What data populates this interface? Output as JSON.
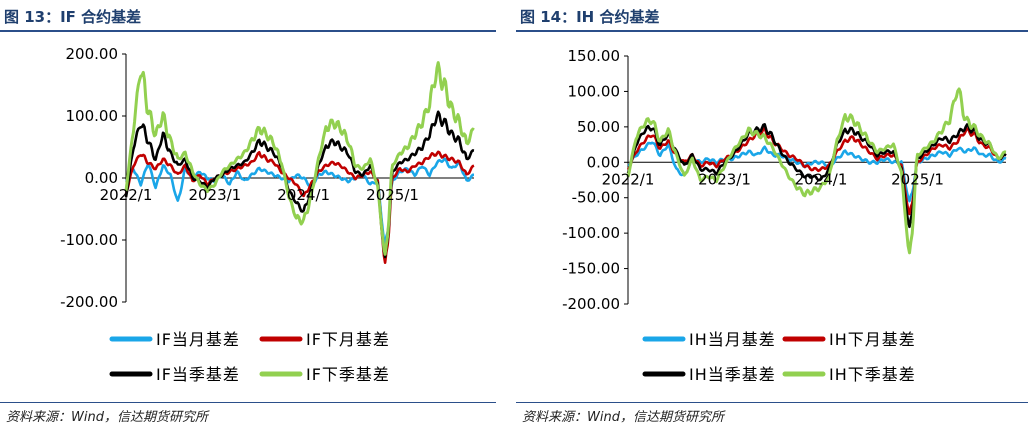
{
  "figures": [
    {
      "title": "图 13：IF 合约基差",
      "source": "资料来源：Wind，信达期货研究所"
    },
    {
      "title": "图 14：IH 合约基差",
      "source": "资料来源：Wind，信达期货研究所"
    }
  ],
  "colors": {
    "title": "#1f3f6e",
    "rule": "#2b4f8a",
    "current_month": "#1aa6e8",
    "next_month": "#c00000",
    "current_quarter": "#000000",
    "next_quarter": "#92d050"
  },
  "chart_data": [
    {
      "type": "line",
      "title": "",
      "x_tick_labels": [
        "2022/1",
        "2023/1",
        "2024/1",
        "2025/1"
      ],
      "x_range": [
        "2022/1",
        "2025/12"
      ],
      "ylim": [
        -200,
        200
      ],
      "y_ticks": [
        200,
        100,
        0,
        -100,
        -200
      ],
      "y_tick_labels": [
        "200.00",
        "100.00",
        "0.00",
        "-100.00",
        "-200.00"
      ],
      "grid": false,
      "legend": "bottom",
      "series": [
        {
          "name": "IF当月基差",
          "color": "#1aa6e8",
          "x": [
            "2022/1",
            "2022/2",
            "2022/3",
            "2022/4",
            "2022/5",
            "2022/6",
            "2022/7",
            "2022/8",
            "2022/9",
            "2022/10",
            "2022/11",
            "2022/12",
            "2023/1",
            "2023/2",
            "2023/3",
            "2023/4",
            "2023/5",
            "2023/6",
            "2023/7",
            "2023/8",
            "2023/9",
            "2023/10",
            "2023/11",
            "2023/12",
            "2024/1",
            "2024/2",
            "2024/3",
            "2024/4",
            "2024/5",
            "2024/6",
            "2024/7",
            "2024/8",
            "2024/9",
            "2024/10",
            "2024/11",
            "2024/12",
            "2025/1",
            "2025/2",
            "2025/3",
            "2025/4",
            "2025/5",
            "2025/6",
            "2025/7",
            "2025/8",
            "2025/9",
            "2025/10",
            "2025/11",
            "2025/12"
          ],
          "y": [
            -5,
            15,
            -10,
            25,
            -15,
            20,
            5,
            -40,
            15,
            0,
            10,
            0,
            -5,
            5,
            -10,
            10,
            -5,
            5,
            15,
            10,
            5,
            0,
            -5,
            5,
            0,
            -15,
            5,
            10,
            5,
            0,
            -5,
            0,
            5,
            -10,
            -5,
            -120,
            -5,
            10,
            15,
            5,
            20,
            5,
            25,
            30,
            15,
            25,
            -5,
            5
          ]
        },
        {
          "name": "IF下月基差",
          "color": "#c00000",
          "x": [
            "2022/1",
            "2022/2",
            "2022/3",
            "2022/4",
            "2022/5",
            "2022/6",
            "2022/7",
            "2022/8",
            "2022/9",
            "2022/10",
            "2022/11",
            "2022/12",
            "2023/1",
            "2023/2",
            "2023/3",
            "2023/4",
            "2023/5",
            "2023/6",
            "2023/7",
            "2023/8",
            "2023/9",
            "2023/10",
            "2023/11",
            "2023/12",
            "2024/1",
            "2024/2",
            "2024/3",
            "2024/4",
            "2024/5",
            "2024/6",
            "2024/7",
            "2024/8",
            "2024/9",
            "2024/10",
            "2024/11",
            "2024/12",
            "2025/1",
            "2025/2",
            "2025/3",
            "2025/4",
            "2025/5",
            "2025/6",
            "2025/7",
            "2025/8",
            "2025/9",
            "2025/10",
            "2025/11",
            "2025/12"
          ],
          "y": [
            -25,
            20,
            40,
            25,
            15,
            30,
            20,
            5,
            20,
            -5,
            5,
            -10,
            0,
            5,
            10,
            15,
            20,
            25,
            40,
            30,
            25,
            10,
            0,
            -10,
            -30,
            -10,
            10,
            20,
            25,
            20,
            10,
            0,
            5,
            10,
            -5,
            -150,
            0,
            15,
            10,
            20,
            25,
            35,
            40,
            35,
            30,
            25,
            5,
            20
          ]
        },
        {
          "name": "IF当季基差",
          "color": "#000000",
          "x": [
            "2022/1",
            "2022/2",
            "2022/3",
            "2022/4",
            "2022/5",
            "2022/6",
            "2022/7",
            "2022/8",
            "2022/9",
            "2022/10",
            "2022/11",
            "2022/12",
            "2023/1",
            "2023/2",
            "2023/3",
            "2023/4",
            "2023/5",
            "2023/6",
            "2023/7",
            "2023/8",
            "2023/9",
            "2023/10",
            "2023/11",
            "2023/12",
            "2024/1",
            "2024/2",
            "2024/3",
            "2024/4",
            "2024/5",
            "2024/6",
            "2024/7",
            "2024/8",
            "2024/9",
            "2024/10",
            "2024/11",
            "2024/12",
            "2025/1",
            "2025/2",
            "2025/3",
            "2025/4",
            "2025/5",
            "2025/6",
            "2025/7",
            "2025/8",
            "2025/9",
            "2025/10",
            "2025/11",
            "2025/12"
          ],
          "y": [
            -30,
            50,
            90,
            60,
            30,
            70,
            40,
            20,
            30,
            0,
            -5,
            -15,
            0,
            5,
            15,
            20,
            25,
            40,
            60,
            50,
            40,
            20,
            -20,
            -40,
            -55,
            -20,
            20,
            50,
            60,
            50,
            40,
            10,
            5,
            20,
            -10,
            -140,
            10,
            25,
            30,
            40,
            50,
            70,
            100,
            90,
            70,
            60,
            30,
            45
          ]
        },
        {
          "name": "IF下季基差",
          "color": "#92d050",
          "x": [
            "2022/1",
            "2022/2",
            "2022/3",
            "2022/4",
            "2022/5",
            "2022/6",
            "2022/7",
            "2022/8",
            "2022/9",
            "2022/10",
            "2022/11",
            "2022/12",
            "2023/1",
            "2023/2",
            "2023/3",
            "2023/4",
            "2023/5",
            "2023/6",
            "2023/7",
            "2023/8",
            "2023/9",
            "2023/10",
            "2023/11",
            "2023/12",
            "2024/1",
            "2024/2",
            "2024/3",
            "2024/4",
            "2024/5",
            "2024/6",
            "2024/7",
            "2024/8",
            "2024/9",
            "2024/10",
            "2024/11",
            "2024/12",
            "2025/1",
            "2025/2",
            "2025/3",
            "2025/4",
            "2025/5",
            "2025/6",
            "2025/7",
            "2025/8",
            "2025/9",
            "2025/10",
            "2025/11",
            "2025/12"
          ],
          "y": [
            -20,
            80,
            180,
            110,
            70,
            100,
            60,
            30,
            40,
            10,
            -10,
            -20,
            -10,
            10,
            20,
            30,
            40,
            60,
            80,
            70,
            55,
            25,
            -30,
            -65,
            -70,
            -30,
            30,
            80,
            90,
            80,
            60,
            20,
            15,
            30,
            -15,
            -135,
            20,
            40,
            50,
            70,
            90,
            120,
            175,
            150,
            110,
            90,
            55,
            80
          ]
        }
      ]
    },
    {
      "type": "line",
      "title": "",
      "x_tick_labels": [
        "2022/1",
        "2023/1",
        "2024/1",
        "2025/1"
      ],
      "x_range": [
        "2022/1",
        "2025/12"
      ],
      "ylim": [
        -200,
        150
      ],
      "y_ticks": [
        150,
        100,
        50,
        0,
        -50,
        -100,
        -150,
        -200
      ],
      "y_tick_labels": [
        "150.00",
        "100.00",
        "50.00",
        "0.00",
        "-50.00",
        "-100.00",
        "-150.00",
        "-200.00"
      ],
      "grid": false,
      "legend": "bottom",
      "series": [
        {
          "name": "IH当月基差",
          "color": "#1aa6e8",
          "x": [
            "2022/1",
            "2022/2",
            "2022/3",
            "2022/4",
            "2022/5",
            "2022/6",
            "2022/7",
            "2022/8",
            "2022/9",
            "2022/10",
            "2022/11",
            "2022/12",
            "2023/1",
            "2023/2",
            "2023/3",
            "2023/4",
            "2023/5",
            "2023/6",
            "2023/7",
            "2023/8",
            "2023/9",
            "2023/10",
            "2023/11",
            "2023/12",
            "2024/1",
            "2024/2",
            "2024/3",
            "2024/4",
            "2024/5",
            "2024/6",
            "2024/7",
            "2024/8",
            "2024/9",
            "2024/10",
            "2024/11",
            "2024/12",
            "2025/1",
            "2025/2",
            "2025/3",
            "2025/4",
            "2025/5",
            "2025/6",
            "2025/7",
            "2025/8",
            "2025/9",
            "2025/10",
            "2025/11",
            "2025/12"
          ],
          "y": [
            -5,
            10,
            20,
            30,
            10,
            25,
            -10,
            -20,
            5,
            0,
            5,
            0,
            5,
            5,
            10,
            15,
            10,
            20,
            10,
            10,
            5,
            0,
            -5,
            0,
            0,
            -5,
            5,
            15,
            10,
            5,
            0,
            0,
            5,
            0,
            0,
            -60,
            0,
            5,
            10,
            15,
            10,
            20,
            15,
            20,
            10,
            10,
            0,
            5
          ]
        },
        {
          "name": "IH下月基差",
          "color": "#c00000",
          "x": [
            "2022/1",
            "2022/2",
            "2022/3",
            "2022/4",
            "2022/5",
            "2022/6",
            "2022/7",
            "2022/8",
            "2022/9",
            "2022/10",
            "2022/11",
            "2022/12",
            "2023/1",
            "2023/2",
            "2023/3",
            "2023/4",
            "2023/5",
            "2023/6",
            "2023/7",
            "2023/8",
            "2023/9",
            "2023/10",
            "2023/11",
            "2023/12",
            "2024/1",
            "2024/2",
            "2024/3",
            "2024/4",
            "2024/5",
            "2024/6",
            "2024/7",
            "2024/8",
            "2024/9",
            "2024/10",
            "2024/11",
            "2024/12",
            "2025/1",
            "2025/2",
            "2025/3",
            "2025/4",
            "2025/5",
            "2025/6",
            "2025/7",
            "2025/8",
            "2025/9",
            "2025/10",
            "2025/11",
            "2025/12"
          ],
          "y": [
            -10,
            15,
            30,
            40,
            20,
            30,
            10,
            0,
            10,
            -5,
            0,
            -5,
            5,
            10,
            20,
            30,
            40,
            45,
            30,
            20,
            10,
            5,
            -5,
            -10,
            -10,
            -5,
            15,
            30,
            35,
            25,
            15,
            5,
            10,
            10,
            -5,
            -80,
            0,
            10,
            20,
            25,
            20,
            30,
            45,
            40,
            25,
            20,
            5,
            10
          ]
        },
        {
          "name": "IH当季基差",
          "color": "#000000",
          "x": [
            "2022/1",
            "2022/2",
            "2022/3",
            "2022/4",
            "2022/5",
            "2022/6",
            "2022/7",
            "2022/8",
            "2022/9",
            "2022/10",
            "2022/11",
            "2022/12",
            "2023/1",
            "2023/2",
            "2023/3",
            "2023/4",
            "2023/5",
            "2023/6",
            "2023/7",
            "2023/8",
            "2023/9",
            "2023/10",
            "2023/11",
            "2023/12",
            "2024/1",
            "2024/2",
            "2024/3",
            "2024/4",
            "2024/5",
            "2024/6",
            "2024/7",
            "2024/8",
            "2024/9",
            "2024/10",
            "2024/11",
            "2024/12",
            "2025/1",
            "2025/2",
            "2025/3",
            "2025/4",
            "2025/5",
            "2025/6",
            "2025/7",
            "2025/8",
            "2025/9",
            "2025/10",
            "2025/11",
            "2025/12"
          ],
          "y": [
            -15,
            25,
            45,
            50,
            25,
            40,
            15,
            -5,
            10,
            -10,
            -10,
            -15,
            0,
            10,
            25,
            40,
            45,
            50,
            35,
            15,
            0,
            -10,
            -20,
            -20,
            -25,
            -10,
            25,
            45,
            45,
            35,
            25,
            10,
            15,
            15,
            -10,
            -100,
            5,
            15,
            25,
            35,
            30,
            40,
            50,
            45,
            30,
            25,
            5,
            10
          ]
        },
        {
          "name": "IH下季基差",
          "color": "#92d050",
          "x": [
            "2022/1",
            "2022/2",
            "2022/3",
            "2022/4",
            "2022/5",
            "2022/6",
            "2022/7",
            "2022/8",
            "2022/9",
            "2022/10",
            "2022/11",
            "2022/12",
            "2023/1",
            "2023/2",
            "2023/3",
            "2023/4",
            "2023/5",
            "2023/6",
            "2023/7",
            "2023/8",
            "2023/9",
            "2023/10",
            "2023/11",
            "2023/12",
            "2024/1",
            "2024/2",
            "2024/3",
            "2024/4",
            "2024/5",
            "2024/6",
            "2024/7",
            "2024/8",
            "2024/9",
            "2024/10",
            "2024/11",
            "2024/12",
            "2025/1",
            "2025/2",
            "2025/3",
            "2025/4",
            "2025/5",
            "2025/6",
            "2025/7",
            "2025/8",
            "2025/9",
            "2025/10",
            "2025/11",
            "2025/12"
          ],
          "y": [
            -20,
            35,
            55,
            60,
            30,
            45,
            10,
            -20,
            5,
            -25,
            -20,
            -25,
            -5,
            15,
            30,
            45,
            40,
            35,
            20,
            0,
            -20,
            -35,
            -45,
            -40,
            -35,
            -20,
            30,
            65,
            60,
            45,
            30,
            15,
            20,
            25,
            -15,
            -140,
            10,
            20,
            30,
            45,
            60,
            105,
            60,
            50,
            35,
            25,
            5,
            15
          ]
        }
      ]
    }
  ]
}
